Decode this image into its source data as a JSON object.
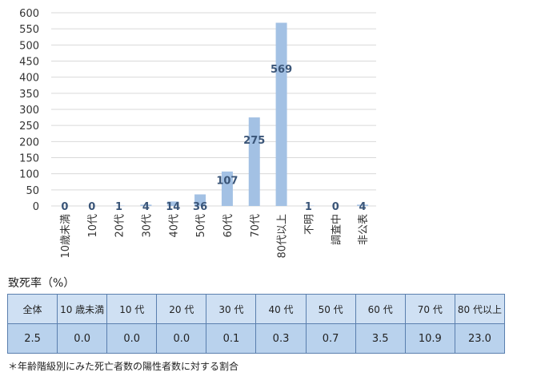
{
  "chart_data": {
    "type": "bar",
    "categories": [
      "10歳未満",
      "10代",
      "20代",
      "30代",
      "40代",
      "50代",
      "60代",
      "70代",
      "80代以上",
      "不明",
      "調査中",
      "非公表"
    ],
    "values": [
      0,
      0,
      1,
      4,
      14,
      36,
      107,
      275,
      569,
      1,
      0,
      4
    ],
    "data_labels": [
      "0",
      "0",
      "1",
      "4",
      "14",
      "36",
      "107",
      "275",
      "569",
      "1",
      "0",
      "4"
    ],
    "yticks": [
      "0",
      "50",
      "100",
      "150",
      "200",
      "250",
      "300",
      "350",
      "400",
      "450",
      "500",
      "550",
      "600"
    ],
    "ylim": [
      0,
      600
    ],
    "grid": true,
    "colors": {
      "bar": "#a3c1e4",
      "label": "#3a5578",
      "grid": "#d9d9d9"
    }
  },
  "section_title": "致死率（%）",
  "rate_table": {
    "headers": [
      "全体",
      "10 歳未満",
      "10 代",
      "20 代",
      "30 代",
      "40 代",
      "50 代",
      "60 代",
      "70 代",
      "80 代以上"
    ],
    "values": [
      "2.5",
      "0.0",
      "0.0",
      "0.0",
      "0.1",
      "0.3",
      "0.7",
      "3.5",
      "10.9",
      "23.0"
    ]
  },
  "footnote": "＊年齢階級別にみた死亡者数の陽性者数に対する割合"
}
